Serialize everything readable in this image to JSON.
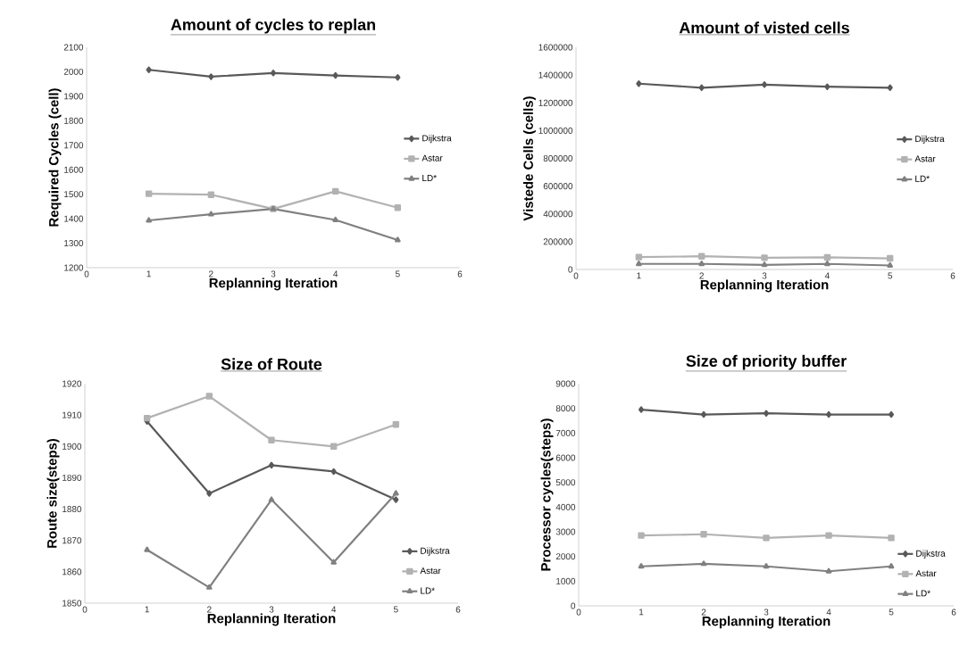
{
  "chart_data": [
    {
      "type": "line",
      "title": "Amount of cycles to replan",
      "xlabel": "Replanning Iteration",
      "ylabel": "Required Cycles (cell)",
      "x": [
        1,
        2,
        3,
        4,
        5
      ],
      "xlim": [
        0,
        6
      ],
      "xticks": [
        0,
        1,
        2,
        3,
        4,
        5,
        6
      ],
      "ylim": [
        1200,
        2100
      ],
      "yticks": [
        1200,
        1300,
        1400,
        1500,
        1600,
        1700,
        1800,
        1900,
        2000,
        2100
      ],
      "legend": "right",
      "grid": false,
      "series": [
        {
          "name": "Dijkstra",
          "color": "#595959",
          "marker": "diamond",
          "values": [
            2008,
            1980,
            1995,
            1985,
            1977
          ]
        },
        {
          "name": "Astar",
          "color": "#b2b2b2",
          "marker": "square",
          "values": [
            1502,
            1498,
            1440,
            1512,
            1445
          ]
        },
        {
          "name": "LD*",
          "color": "#808080",
          "marker": "triangle",
          "values": [
            1393,
            1418,
            1440,
            1395,
            1313
          ]
        }
      ]
    },
    {
      "type": "line",
      "title": "Amount of visted cells",
      "xlabel": "Replanning Iteration",
      "ylabel": "Vistede Cells (cells)",
      "x": [
        1,
        2,
        3,
        4,
        5
      ],
      "xlim": [
        0,
        6
      ],
      "xticks": [
        0,
        1,
        2,
        3,
        4,
        5,
        6
      ],
      "ylim": [
        0,
        1600000
      ],
      "yticks": [
        0,
        200000,
        400000,
        600000,
        800000,
        1000000,
        1200000,
        1400000,
        1600000
      ],
      "legend": "right",
      "grid": false,
      "series": [
        {
          "name": "Dijkstra",
          "color": "#595959",
          "marker": "diamond",
          "values": [
            1338000,
            1309000,
            1331000,
            1316000,
            1309000
          ]
        },
        {
          "name": "Astar",
          "color": "#b2b2b2",
          "marker": "square",
          "values": [
            89000,
            95000,
            84000,
            87000,
            80000
          ]
        },
        {
          "name": "LD*",
          "color": "#808080",
          "marker": "triangle",
          "values": [
            40000,
            40000,
            33000,
            40000,
            29000
          ]
        }
      ]
    },
    {
      "type": "line",
      "title": "Size of Route",
      "xlabel": "Replanning Iteration",
      "ylabel": "Route size(steps)",
      "x": [
        1,
        2,
        3,
        4,
        5
      ],
      "xlim": [
        0,
        6
      ],
      "xticks": [
        0,
        1,
        2,
        3,
        4,
        5,
        6
      ],
      "ylim": [
        1850,
        1920
      ],
      "yticks": [
        1850,
        1860,
        1870,
        1880,
        1890,
        1900,
        1910,
        1920
      ],
      "legend": "bottom right",
      "grid": false,
      "series": [
        {
          "name": "Dijkstra",
          "color": "#595959",
          "marker": "diamond",
          "values": [
            1908,
            1885,
            1894,
            1892,
            1883
          ]
        },
        {
          "name": "Astar",
          "color": "#b2b2b2",
          "marker": "square",
          "values": [
            1909,
            1916,
            1902,
            1900,
            1907
          ]
        },
        {
          "name": "LD*",
          "color": "#808080",
          "marker": "triangle",
          "values": [
            1867,
            1855,
            1883,
            1863,
            1885
          ]
        }
      ]
    },
    {
      "type": "line",
      "title": "Size of priority buffer",
      "xlabel": "Replanning Iteration",
      "ylabel": "Processor cycles(steps)",
      "x": [
        1,
        2,
        3,
        4,
        5
      ],
      "xlim": [
        0,
        6
      ],
      "xticks": [
        0,
        1,
        2,
        3,
        4,
        5,
        6
      ],
      "ylim": [
        0,
        9000
      ],
      "yticks": [
        0,
        1000,
        2000,
        3000,
        4000,
        5000,
        6000,
        7000,
        8000,
        9000
      ],
      "legend": "bottom right",
      "grid": false,
      "series": [
        {
          "name": "Dijkstra",
          "color": "#595959",
          "marker": "diamond",
          "values": [
            7950,
            7750,
            7800,
            7750,
            7750
          ]
        },
        {
          "name": "Astar",
          "color": "#b2b2b2",
          "marker": "square",
          "values": [
            2850,
            2900,
            2750,
            2850,
            2750
          ]
        },
        {
          "name": "LD*",
          "color": "#808080",
          "marker": "triangle",
          "values": [
            1600,
            1700,
            1600,
            1400,
            1600
          ]
        }
      ]
    }
  ]
}
